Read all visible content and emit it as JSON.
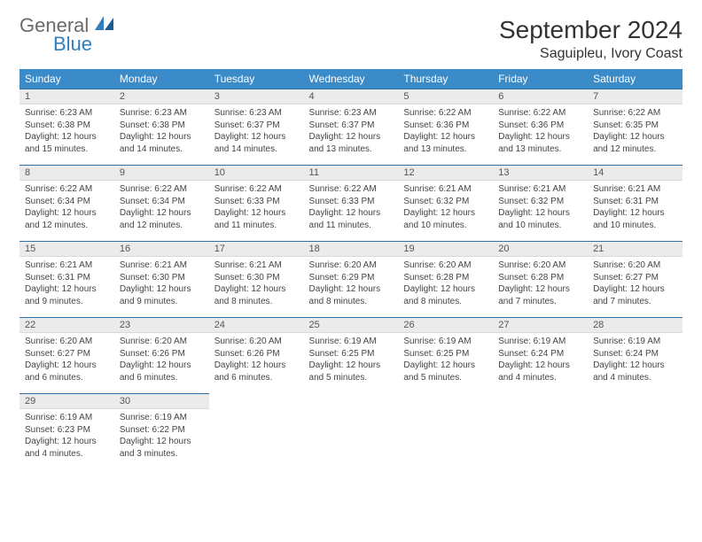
{
  "brand": {
    "line1": "General",
    "line2": "Blue"
  },
  "title": "September 2024",
  "location": "Saguipleu, Ivory Coast",
  "colors": {
    "header_bg": "#3b8bc9",
    "header_text": "#ffffff",
    "daynum_bg": "#ebebeb",
    "daynum_border_top": "#2f6fa8",
    "logo_accent": "#2f7fbf",
    "logo_gray": "#6b6b6b"
  },
  "day_headers": [
    "Sunday",
    "Monday",
    "Tuesday",
    "Wednesday",
    "Thursday",
    "Friday",
    "Saturday"
  ],
  "weeks": [
    [
      {
        "n": "1",
        "sr": "6:23 AM",
        "ss": "6:38 PM",
        "dl": "12 hours and 15 minutes."
      },
      {
        "n": "2",
        "sr": "6:23 AM",
        "ss": "6:38 PM",
        "dl": "12 hours and 14 minutes."
      },
      {
        "n": "3",
        "sr": "6:23 AM",
        "ss": "6:37 PM",
        "dl": "12 hours and 14 minutes."
      },
      {
        "n": "4",
        "sr": "6:23 AM",
        "ss": "6:37 PM",
        "dl": "12 hours and 13 minutes."
      },
      {
        "n": "5",
        "sr": "6:22 AM",
        "ss": "6:36 PM",
        "dl": "12 hours and 13 minutes."
      },
      {
        "n": "6",
        "sr": "6:22 AM",
        "ss": "6:36 PM",
        "dl": "12 hours and 13 minutes."
      },
      {
        "n": "7",
        "sr": "6:22 AM",
        "ss": "6:35 PM",
        "dl": "12 hours and 12 minutes."
      }
    ],
    [
      {
        "n": "8",
        "sr": "6:22 AM",
        "ss": "6:34 PM",
        "dl": "12 hours and 12 minutes."
      },
      {
        "n": "9",
        "sr": "6:22 AM",
        "ss": "6:34 PM",
        "dl": "12 hours and 12 minutes."
      },
      {
        "n": "10",
        "sr": "6:22 AM",
        "ss": "6:33 PM",
        "dl": "12 hours and 11 minutes."
      },
      {
        "n": "11",
        "sr": "6:22 AM",
        "ss": "6:33 PM",
        "dl": "12 hours and 11 minutes."
      },
      {
        "n": "12",
        "sr": "6:21 AM",
        "ss": "6:32 PM",
        "dl": "12 hours and 10 minutes."
      },
      {
        "n": "13",
        "sr": "6:21 AM",
        "ss": "6:32 PM",
        "dl": "12 hours and 10 minutes."
      },
      {
        "n": "14",
        "sr": "6:21 AM",
        "ss": "6:31 PM",
        "dl": "12 hours and 10 minutes."
      }
    ],
    [
      {
        "n": "15",
        "sr": "6:21 AM",
        "ss": "6:31 PM",
        "dl": "12 hours and 9 minutes."
      },
      {
        "n": "16",
        "sr": "6:21 AM",
        "ss": "6:30 PM",
        "dl": "12 hours and 9 minutes."
      },
      {
        "n": "17",
        "sr": "6:21 AM",
        "ss": "6:30 PM",
        "dl": "12 hours and 8 minutes."
      },
      {
        "n": "18",
        "sr": "6:20 AM",
        "ss": "6:29 PM",
        "dl": "12 hours and 8 minutes."
      },
      {
        "n": "19",
        "sr": "6:20 AM",
        "ss": "6:28 PM",
        "dl": "12 hours and 8 minutes."
      },
      {
        "n": "20",
        "sr": "6:20 AM",
        "ss": "6:28 PM",
        "dl": "12 hours and 7 minutes."
      },
      {
        "n": "21",
        "sr": "6:20 AM",
        "ss": "6:27 PM",
        "dl": "12 hours and 7 minutes."
      }
    ],
    [
      {
        "n": "22",
        "sr": "6:20 AM",
        "ss": "6:27 PM",
        "dl": "12 hours and 6 minutes."
      },
      {
        "n": "23",
        "sr": "6:20 AM",
        "ss": "6:26 PM",
        "dl": "12 hours and 6 minutes."
      },
      {
        "n": "24",
        "sr": "6:20 AM",
        "ss": "6:26 PM",
        "dl": "12 hours and 6 minutes."
      },
      {
        "n": "25",
        "sr": "6:19 AM",
        "ss": "6:25 PM",
        "dl": "12 hours and 5 minutes."
      },
      {
        "n": "26",
        "sr": "6:19 AM",
        "ss": "6:25 PM",
        "dl": "12 hours and 5 minutes."
      },
      {
        "n": "27",
        "sr": "6:19 AM",
        "ss": "6:24 PM",
        "dl": "12 hours and 4 minutes."
      },
      {
        "n": "28",
        "sr": "6:19 AM",
        "ss": "6:24 PM",
        "dl": "12 hours and 4 minutes."
      }
    ],
    [
      {
        "n": "29",
        "sr": "6:19 AM",
        "ss": "6:23 PM",
        "dl": "12 hours and 4 minutes."
      },
      {
        "n": "30",
        "sr": "6:19 AM",
        "ss": "6:22 PM",
        "dl": "12 hours and 3 minutes."
      },
      null,
      null,
      null,
      null,
      null
    ]
  ],
  "labels": {
    "sunrise": "Sunrise:",
    "sunset": "Sunset:",
    "daylight": "Daylight:"
  }
}
